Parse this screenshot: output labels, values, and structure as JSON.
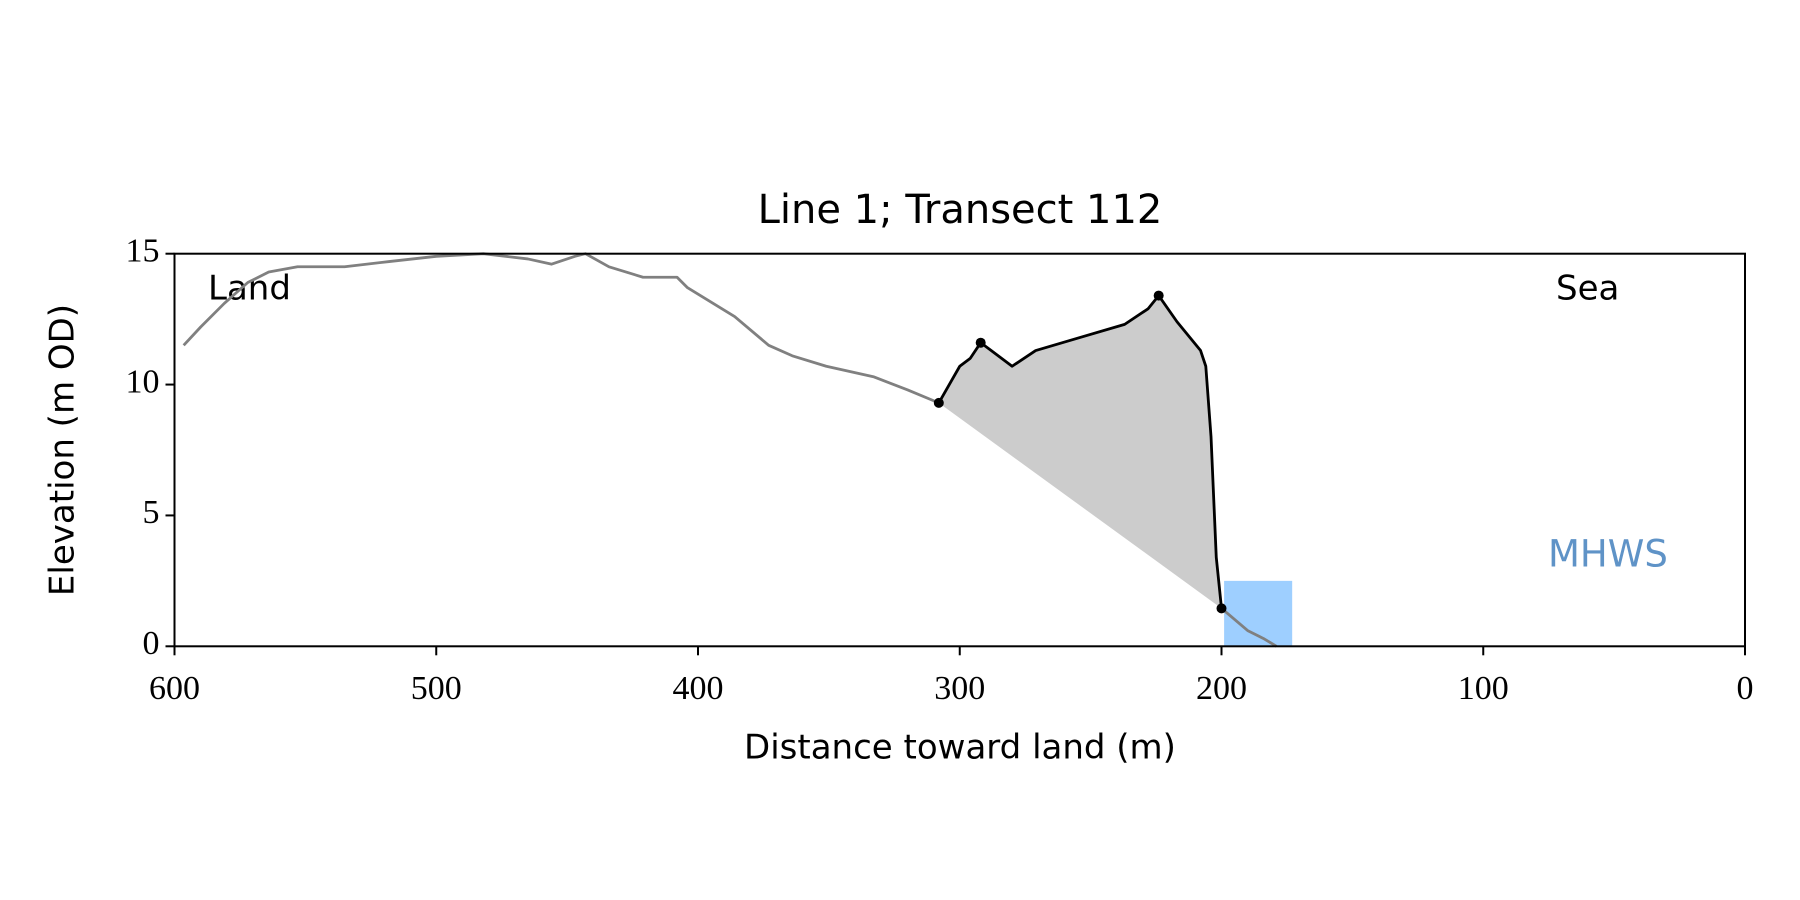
{
  "chart_data": {
    "type": "line",
    "title": "Line 1; Transect 112",
    "xlabel": "Distance toward land (m)",
    "ylabel": "Elevation (m OD)",
    "xlim": [
      600,
      0
    ],
    "ylim": [
      0,
      15
    ],
    "xticks": [
      600,
      500,
      400,
      300,
      200,
      100,
      0
    ],
    "yticks": [
      0,
      5,
      10,
      15
    ],
    "annotations": [
      "Land",
      "Sea"
    ],
    "mhws": {
      "label": "MHWS",
      "color": "#9ecfff",
      "label_color": "#5f93c7",
      "level": 2.5,
      "x": [
        199,
        173
      ]
    },
    "fill_color": "#cccccc",
    "series": [
      {
        "color": "#808080",
        "x": [
          596.5,
          590,
          581,
          572,
          564,
          553,
          535,
          518,
          500,
          482,
          465,
          456,
          447,
          443,
          434,
          421,
          408,
          404,
          386,
          373,
          364,
          351,
          333,
          320,
          308,
          null,
          200,
          190,
          184,
          179
        ],
        "values": [
          11.5,
          12.2,
          13.1,
          13.9,
          14.3,
          14.5,
          14.5,
          14.7,
          14.9,
          15.0,
          14.8,
          14.6,
          14.9,
          15.0,
          14.5,
          14.1,
          14.1,
          13.7,
          12.6,
          11.5,
          11.1,
          10.7,
          10.3,
          9.8,
          9.3,
          null,
          1.45,
          0.6,
          0.3,
          0
        ]
      },
      {
        "color": "#000000",
        "x": [
          308,
          300,
          296,
          292,
          288,
          280,
          271,
          254,
          237,
          228,
          224,
          217,
          208,
          206,
          204,
          202,
          200
        ],
        "values": [
          9.3,
          10.7,
          11.0,
          11.6,
          11.3,
          10.7,
          11.3,
          11.8,
          12.3,
          12.9,
          13.4,
          12.4,
          11.3,
          10.7,
          8.0,
          3.4,
          1.45
        ]
      },
      {
        "color": "#000000",
        "marker": true,
        "x": [
          308,
          292,
          224,
          200
        ],
        "values": [
          9.3,
          11.6,
          13.4,
          1.45
        ]
      }
    ]
  }
}
